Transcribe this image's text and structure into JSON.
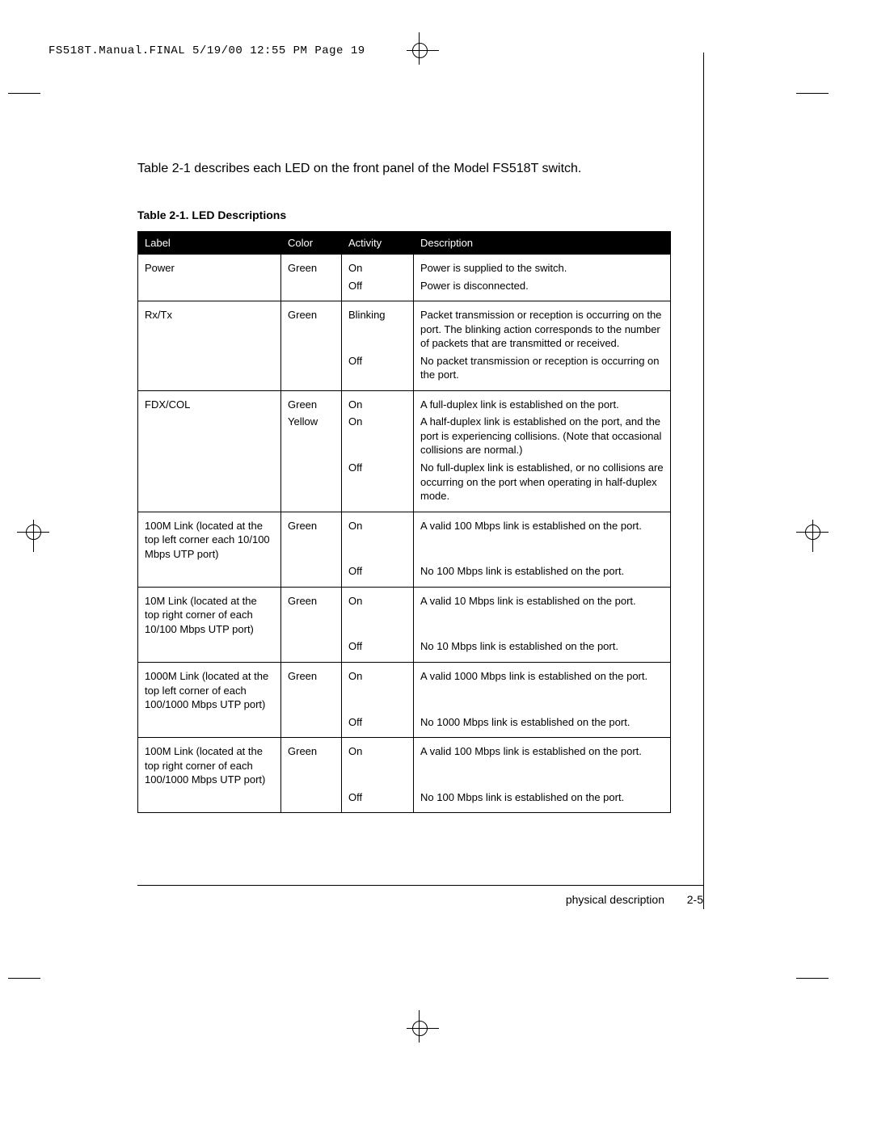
{
  "header": {
    "slug": "FS518T.Manual.FINAL  5/19/00  12:55 PM  Page 19"
  },
  "intro": "Table 2-1 describes each LED on the front panel of the Model FS518T switch.",
  "table": {
    "title": "Table 2-1.  LED Descriptions",
    "columns": {
      "label": "Label",
      "color": "Color",
      "activity": "Activity",
      "description": "Description"
    },
    "colors": {
      "header_bg": "#000000",
      "header_fg": "#ffffff",
      "border": "#000000",
      "body_fg": "#000000",
      "body_bg": "#ffffff"
    },
    "font_size_pt": 10,
    "sections": [
      {
        "label": "Power",
        "rows": [
          {
            "color": "Green",
            "activity": "On",
            "desc": "Power is supplied to the switch."
          },
          {
            "color": "",
            "activity": "Off",
            "desc": "Power is disconnected."
          }
        ]
      },
      {
        "label": "Rx/Tx",
        "rows": [
          {
            "color": "Green",
            "activity": "Blinking",
            "desc": "Packet transmission or reception is occurring on the port. The blinking action corresponds to the number of packets that are transmitted or received."
          },
          {
            "color": "",
            "activity": "Off",
            "desc": "No packet transmission or reception is occurring on the port."
          }
        ]
      },
      {
        "label": "FDX/COL",
        "rows": [
          {
            "color": "Green",
            "activity": "On",
            "desc": "A full-duplex link is established on the port."
          },
          {
            "color": "Yellow",
            "activity": "On",
            "desc": "A half-duplex link is established on the port, and the port is experiencing collisions. (Note that occasional collisions are normal.)"
          },
          {
            "color": "",
            "activity": "Off",
            "desc": "No full-duplex link is established, or no collisions are occurring on the port when operating in half-duplex mode."
          }
        ]
      },
      {
        "label": "100M Link (located at the top left corner each 10/100 Mbps UTP port)",
        "rows": [
          {
            "color": "Green",
            "activity": "On",
            "desc": "A valid 100 Mbps link is established on the port."
          },
          {
            "color": "",
            "activity": "Off",
            "desc": "No 100 Mbps link is established on the port."
          }
        ]
      },
      {
        "label": "10M Link (located at the top right corner of each 10/100 Mbps UTP port)",
        "rows": [
          {
            "color": "Green",
            "activity": "On",
            "desc": "A valid 10 Mbps link is established on the port."
          },
          {
            "color": "",
            "activity": "Off",
            "desc": "No 10 Mbps link is established on the port."
          }
        ]
      },
      {
        "label": "1000M Link (located at the top left corner of each 100/1000 Mbps UTP port)",
        "rows": [
          {
            "color": "Green",
            "activity": "On",
            "desc": "A valid 1000 Mbps link is established on the port."
          },
          {
            "color": "",
            "activity": "Off",
            "desc": "No 1000 Mbps link is established on the port."
          }
        ]
      },
      {
        "label": "100M Link (located at the top right corner of each 100/1000 Mbps UTP port)",
        "rows": [
          {
            "color": "Green",
            "activity": "On",
            "desc": "A valid 100 Mbps link is established on the port."
          },
          {
            "color": "",
            "activity": "Off",
            "desc": "No 100 Mbps link is established on the port."
          }
        ]
      }
    ]
  },
  "footer": {
    "section": "physical description",
    "page": "2-5"
  }
}
